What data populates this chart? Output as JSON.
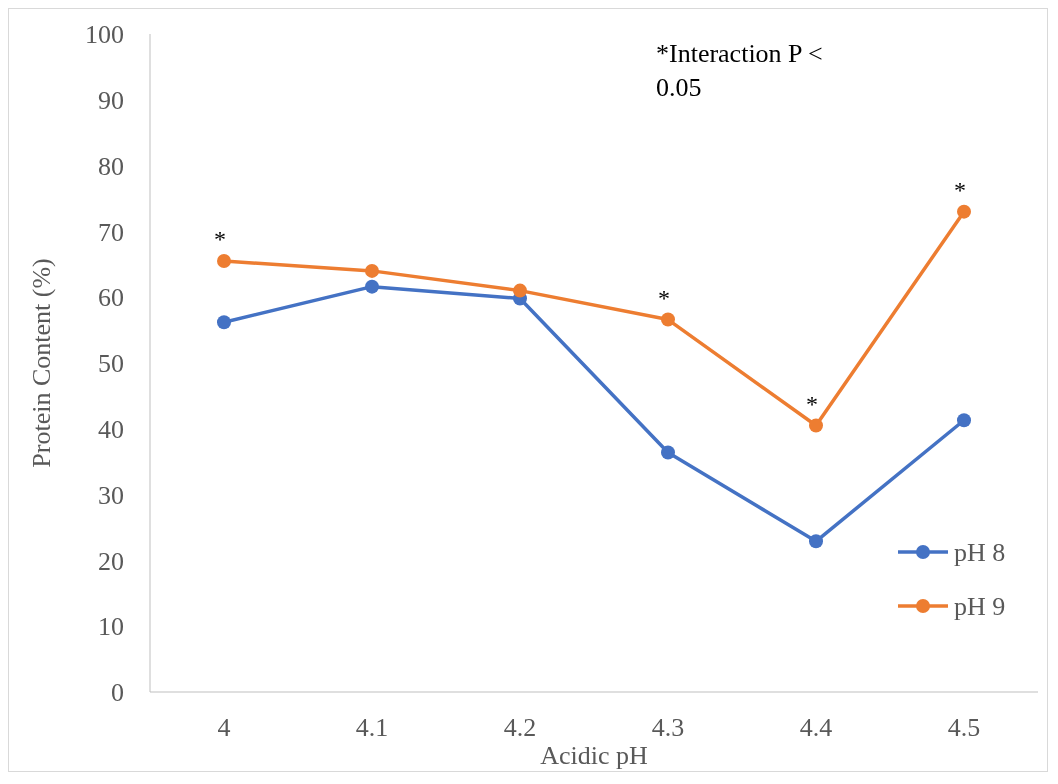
{
  "chart_data": {
    "type": "line",
    "xlabel": "Acidic pH",
    "ylabel": "Protein Content (%)",
    "categories": [
      "4",
      "4.1",
      "4.2",
      "4.3",
      "4.4",
      "4.5"
    ],
    "series": [
      {
        "name": "pH 8",
        "color": "#4472c4",
        "values": [
          56.2,
          61.6,
          59.8,
          36.4,
          22.9,
          41.3
        ]
      },
      {
        "name": "pH 9",
        "color": "#ed7d31",
        "values": [
          65.5,
          64.0,
          61.0,
          56.6,
          40.5,
          73.0
        ]
      }
    ],
    "ylim": [
      0,
      100
    ],
    "yticks": [
      0,
      10,
      20,
      30,
      40,
      50,
      60,
      70,
      80,
      90,
      100
    ],
    "grid": false,
    "legend": "bottom right",
    "marker": "circle",
    "line_style": "solid",
    "annotations": [
      "*Interaction P < 0.05",
      {
        "text": "*",
        "x": "4",
        "y": 65.5
      },
      {
        "text": "*",
        "x": "4.3",
        "y": 56.6
      },
      {
        "text": "*",
        "x": "4.4",
        "y": 40.5
      },
      {
        "text": "*",
        "x": "4.5",
        "y": 73.0
      }
    ]
  }
}
